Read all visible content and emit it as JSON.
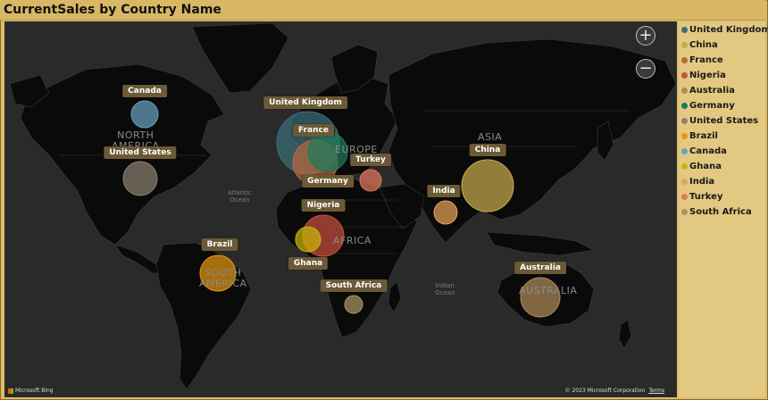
{
  "title": "CurrentSales by Country Name",
  "map": {
    "zoom_in_label": "+",
    "zoom_out_label": "−",
    "regions": {
      "north_america": "NORTH\nAMERICA",
      "south_america": "SOUTH\nAMERICA",
      "africa": "AFRICA",
      "europe": "EUROPE",
      "asia": "ASIA",
      "australia": "AUSTRALIA"
    },
    "oceans": {
      "atlantic": "Atlantic\nOcean",
      "indian": "Indian\nOcean"
    },
    "bing_label": "Microsoft Bing",
    "copyright": "© 2023 Microsoft Corporation",
    "terms": "Terms"
  },
  "legend": [
    {
      "label": "United Kingdom",
      "color": "#3d6f7a"
    },
    {
      "label": "China",
      "color": "#c8ab4e"
    },
    {
      "label": "France",
      "color": "#b9683e"
    },
    {
      "label": "Nigeria",
      "color": "#c8513f"
    },
    {
      "label": "Australia",
      "color": "#b08a5a"
    },
    {
      "label": "Germany",
      "color": "#1f7a5a"
    },
    {
      "label": "United States",
      "color": "#8c8070"
    },
    {
      "label": "Brazil",
      "color": "#e3960f"
    },
    {
      "label": "Canada",
      "color": "#6aa1bf"
    },
    {
      "label": "Ghana",
      "color": "#c9b50a"
    },
    {
      "label": "India",
      "color": "#e6a35a"
    },
    {
      "label": "Turkey",
      "color": "#e0775b"
    },
    {
      "label": "South Africa",
      "color": "#a89665"
    }
  ],
  "bubbles": [
    {
      "label": "Canada",
      "color": "#6aa1bf"
    },
    {
      "label": "United Kingdom",
      "color": "#3d6f7a"
    },
    {
      "label": "France",
      "color": "#b9683e"
    },
    {
      "label": "United States",
      "color": "#8c8070"
    },
    {
      "label": "Turkey",
      "color": "#e0775b"
    },
    {
      "label": "China",
      "color": "#c8ab4e"
    },
    {
      "label": "Germany",
      "color": "#1f7a5a"
    },
    {
      "label": "India",
      "color": "#e6a35a"
    },
    {
      "label": "Nigeria",
      "color": "#c8513f"
    },
    {
      "label": "Brazil",
      "color": "#e3960f"
    },
    {
      "label": "Ghana",
      "color": "#c9b50a"
    },
    {
      "label": "Australia",
      "color": "#b08a5a"
    },
    {
      "label": "South Africa",
      "color": "#a89665"
    }
  ]
}
